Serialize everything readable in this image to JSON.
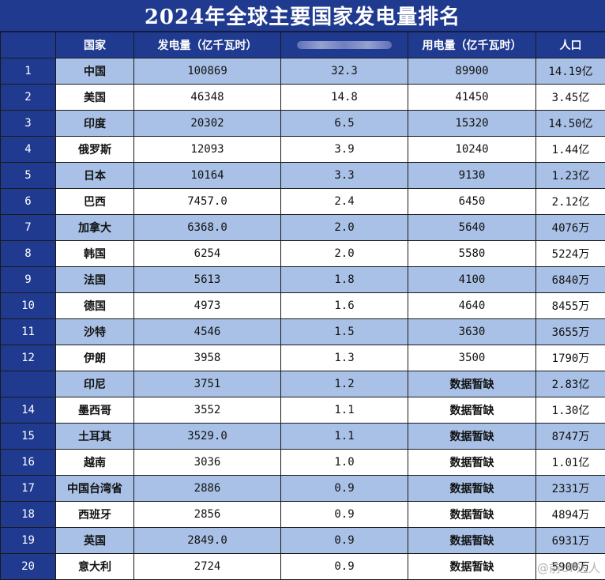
{
  "title": "2024年全球主要国家发电量排名",
  "headers": {
    "rank": "",
    "country": "国家",
    "generation": "发电量（亿千瓦时）",
    "share": "",
    "consumption": "用电量（亿千瓦时）",
    "population": "人口"
  },
  "rows": [
    {
      "rank": "1",
      "country": "中国",
      "generation": "100869",
      "share": "32.3",
      "consumption": "89900",
      "population": "14.19亿"
    },
    {
      "rank": "2",
      "country": "美国",
      "generation": "46348",
      "share": "14.8",
      "consumption": "41450",
      "population": "3.45亿"
    },
    {
      "rank": "3",
      "country": "印度",
      "generation": "20302",
      "share": "6.5",
      "consumption": "15320",
      "population": "14.50亿"
    },
    {
      "rank": "4",
      "country": "俄罗斯",
      "generation": "12093",
      "share": "3.9",
      "consumption": "10240",
      "population": "1.44亿"
    },
    {
      "rank": "5",
      "country": "日本",
      "generation": "10164",
      "share": "3.3",
      "consumption": "9130",
      "population": "1.23亿"
    },
    {
      "rank": "6",
      "country": "巴西",
      "generation": "7457.0",
      "share": "2.4",
      "consumption": "6450",
      "population": "2.12亿"
    },
    {
      "rank": "7",
      "country": "加拿大",
      "generation": "6368.0",
      "share": "2.0",
      "consumption": "5640",
      "population": "4076万"
    },
    {
      "rank": "8",
      "country": "韩国",
      "generation": "6254",
      "share": "2.0",
      "consumption": "5580",
      "population": "5224万"
    },
    {
      "rank": "9",
      "country": "法国",
      "generation": "5613",
      "share": "1.8",
      "consumption": "4100",
      "population": "6840万"
    },
    {
      "rank": "10",
      "country": "德国",
      "generation": "4973",
      "share": "1.6",
      "consumption": "4640",
      "population": "8455万"
    },
    {
      "rank": "11",
      "country": "沙特",
      "generation": "4546",
      "share": "1.5",
      "consumption": "3630",
      "population": "3655万"
    },
    {
      "rank": "12",
      "country": "伊朗",
      "generation": "3958",
      "share": "1.3",
      "consumption": "3500",
      "population": "1790万"
    },
    {
      "rank": "",
      "country": "印尼",
      "generation": "3751",
      "share": "1.2",
      "consumption": "数据暂缺",
      "population": "2.83亿"
    },
    {
      "rank": "14",
      "country": "墨西哥",
      "generation": "3552",
      "share": "1.1",
      "consumption": "数据暂缺",
      "population": "1.30亿"
    },
    {
      "rank": "15",
      "country": "土耳其",
      "generation": "3529.0",
      "share": "1.1",
      "consumption": "数据暂缺",
      "population": "8747万"
    },
    {
      "rank": "16",
      "country": "越南",
      "generation": "3036",
      "share": "1.0",
      "consumption": "数据暂缺",
      "population": "1.01亿"
    },
    {
      "rank": "17",
      "country": "中国台湾省",
      "generation": "2886",
      "share": "0.9",
      "consumption": "数据暂缺",
      "population": "2331万"
    },
    {
      "rank": "18",
      "country": "西班牙",
      "generation": "2856",
      "share": "0.9",
      "consumption": "数据暂缺",
      "population": "4894万"
    },
    {
      "rank": "19",
      "country": "英国",
      "generation": "2849.0",
      "share": "0.9",
      "consumption": "数据暂缺",
      "population": "6931万"
    },
    {
      "rank": "20",
      "country": "意大利",
      "generation": "2724",
      "share": "0.9",
      "consumption": "数据暂缺",
      "population": "5900万"
    }
  ],
  "watermark": "@前UP达人",
  "colors": {
    "header_blue": "#1f3a8f",
    "stripe_blue": "#a9c1e6",
    "white": "#ffffff"
  }
}
